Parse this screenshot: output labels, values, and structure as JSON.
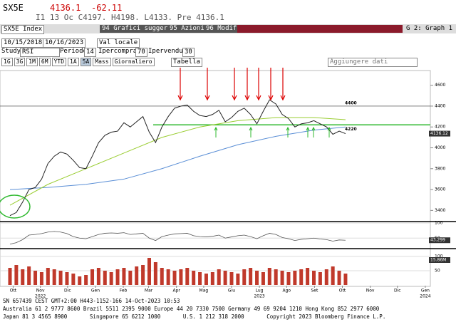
{
  "header": {
    "ticker": "SX5E",
    "last": "4136.1",
    "change": "-62.11",
    "quote": "I1 13 Oc C4197. H4198. L4133. Pre 4136.1"
  },
  "toolbar": {
    "security": "SX5E Index",
    "menu1": "94 Grafici suggeriti",
    "menu2": "95 Azioni",
    "menu3": "96 Modif",
    "graph": "G 2: Graph 1"
  },
  "range": {
    "start": "10/15/2018",
    "end": "10/16/2023",
    "currency": "Val locale"
  },
  "study": {
    "label": "Study",
    "name": "RSI",
    "period_label": "Periodo",
    "period": "14",
    "overbought_label": "Ipercomprato",
    "overbought": "70",
    "oversold_label": "Ipervenduto",
    "oversold": "30"
  },
  "periods": [
    "1G",
    "3G",
    "1M",
    "6M",
    "YTD",
    "1A",
    "5A",
    "Mass",
    "Giornaliero"
  ],
  "table_button": "Tabella",
  "add_data": "Aggiungere dati",
  "chart_data": {
    "type": "line",
    "color": "#222222",
    "x": [
      0,
      1,
      2,
      3,
      4,
      5,
      6,
      7,
      8,
      9,
      10,
      11,
      12,
      13,
      14,
      15,
      16,
      17,
      18,
      19,
      20,
      21,
      22,
      23,
      24,
      25,
      26,
      27,
      28,
      29,
      30,
      31,
      32,
      33,
      34,
      35,
      36,
      37,
      38,
      39,
      40,
      41,
      42,
      43,
      44,
      45,
      46,
      47,
      48,
      49,
      50,
      51,
      52,
      53
    ],
    "values": [
      3350,
      3380,
      3480,
      3600,
      3620,
      3700,
      3850,
      3920,
      3960,
      3940,
      3880,
      3810,
      3800,
      3920,
      4050,
      4120,
      4150,
      4160,
      4240,
      4200,
      4250,
      4300,
      4150,
      4050,
      4200,
      4300,
      4380,
      4400,
      4410,
      4350,
      4310,
      4300,
      4320,
      4360,
      4250,
      4290,
      4350,
      4380,
      4320,
      4230,
      4350,
      4460,
      4420,
      4320,
      4280,
      4200,
      4230,
      4240,
      4260,
      4230,
      4200,
      4130,
      4160,
      4136
    ],
    "moving_averages": [
      {
        "color": "#5b8fd6",
        "x": [
          0,
          6,
          12,
          18,
          24,
          30,
          36,
          42,
          48,
          53
        ],
        "values": [
          3600,
          3620,
          3650,
          3700,
          3800,
          3920,
          4030,
          4110,
          4170,
          4200
        ]
      },
      {
        "color": "#9acd32",
        "x": [
          0,
          6,
          12,
          18,
          24,
          30,
          36,
          42,
          48,
          53
        ],
        "values": [
          3450,
          3650,
          3800,
          3950,
          4100,
          4200,
          4260,
          4290,
          4290,
          4270
        ]
      }
    ],
    "levels": [
      4400,
      4220
    ],
    "level_color": "#2db82d",
    "last_badge": "4136.12",
    "xlim": [
      0,
      66.4
    ],
    "ylim": [
      3300,
      4700
    ],
    "yticks": [
      4600,
      4400,
      4200,
      4000,
      3800,
      3600,
      3400
    ],
    "xticks": [
      {
        "value": 0.5,
        "label": "Ott"
      },
      {
        "value": 4.8,
        "label": "Nov"
      },
      {
        "value": 9.1,
        "label": "Dic"
      },
      {
        "value": 13.5,
        "label": "Gen"
      },
      {
        "value": 17.9,
        "label": "Feb"
      },
      {
        "value": 21.9,
        "label": "Mar"
      },
      {
        "value": 26.3,
        "label": "Apr"
      },
      {
        "value": 30.6,
        "label": "Mag"
      },
      {
        "value": 35,
        "label": "Giu"
      },
      {
        "value": 39.4,
        "label": "Lug"
      },
      {
        "value": 43.7,
        "label": "Ago"
      },
      {
        "value": 48.1,
        "label": "Set"
      },
      {
        "value": 52.5,
        "label": "Ott"
      },
      {
        "value": 56.9,
        "label": "Nov"
      },
      {
        "value": 61.2,
        "label": "Dic"
      },
      {
        "value": 65.6,
        "label": "Gen"
      }
    ],
    "year_ticks": [
      {
        "value": 4.8,
        "label": "2022"
      },
      {
        "value": 39.4,
        "label": "2023"
      },
      {
        "value": 65.6,
        "label": "2024"
      }
    ],
    "rsi": {
      "color": "#555555",
      "values": [
        30,
        35,
        45,
        60,
        62,
        65,
        70,
        72,
        70,
        65,
        55,
        50,
        48,
        55,
        62,
        66,
        67,
        66,
        68,
        62,
        64,
        66,
        50,
        42,
        55,
        60,
        64,
        65,
        66,
        58,
        55,
        54,
        56,
        60,
        50,
        54,
        58,
        60,
        55,
        48,
        58,
        66,
        62,
        52,
        48,
        42,
        46,
        48,
        50,
        47,
        45,
        40,
        44,
        43
      ],
      "ylim": [
        20,
        100
      ],
      "yticks": [
        100,
        50
      ],
      "badge": "43.299"
    },
    "volume": {
      "color": "#c0392b",
      "values": [
        60,
        70,
        55,
        65,
        50,
        45,
        60,
        55,
        50,
        45,
        40,
        30,
        35,
        55,
        60,
        50,
        45,
        55,
        60,
        50,
        65,
        70,
        95,
        80,
        60,
        55,
        50,
        55,
        60,
        50,
        45,
        40,
        45,
        55,
        50,
        45,
        40,
        55,
        60,
        50,
        45,
        60,
        55,
        50,
        45,
        50,
        55,
        60,
        50,
        45,
        55,
        65,
        50,
        40
      ],
      "ylim": [
        0,
        120
      ],
      "yticks": [
        100,
        50
      ],
      "badge": "15.86M"
    }
  },
  "footer": {
    "line1": "Australia 61 2 9777 8600 Brazil 5511 2395 9000 Europe 44 20 7330 7500 Germany 49 69 9204 1210 Hong Kong 852 2977 6000",
    "line2": "Japan 81 3 4565 8900       Singapore 65 6212 1000       U.S. 1 212 318 2000       Copyright 2023 Bloomberg Finance L.P.",
    "line3": "SN 657439 CEST GMT+2:00 H443-1152-166 14-Oct-2023 10:53"
  }
}
